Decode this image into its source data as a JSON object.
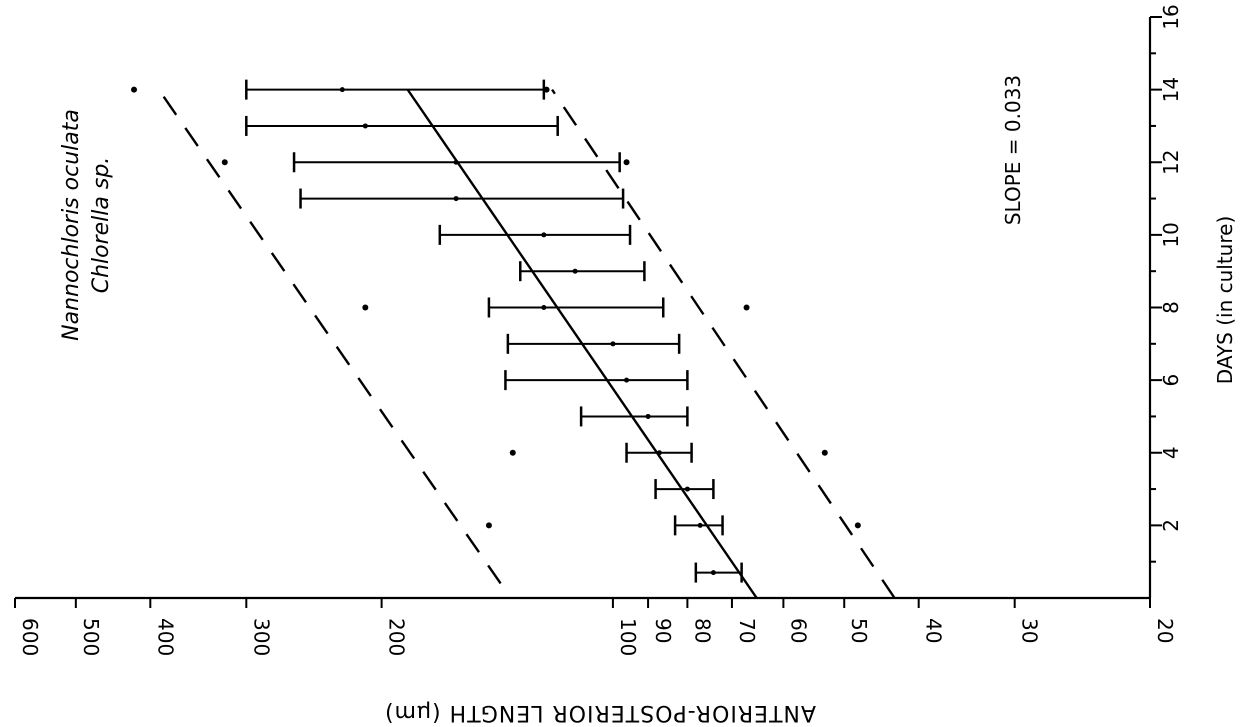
{
  "chart_data": {
    "type": "scatter",
    "orientation": "rotated-90",
    "title": "",
    "xlabel": "DAYS (in culture)",
    "ylabel": "ANTERIOR-POSTERIOR LENGTH (µm)",
    "x_ticks": [
      2,
      4,
      6,
      8,
      10,
      12,
      14,
      16
    ],
    "y_ticks": [
      20,
      30,
      40,
      50,
      60,
      70,
      80,
      90,
      100,
      200,
      300,
      400,
      500,
      600
    ],
    "xlim": [
      0,
      16
    ],
    "ylim": [
      20,
      600
    ],
    "y_scale": "log",
    "legend": [
      "Nannochloris oculata",
      "Chlorella sp."
    ],
    "annotations": [
      "SLOPE = 0.033"
    ],
    "series": [
      {
        "name": "",
        "style": "mean with range bars",
        "points": [
          {
            "x": 0.7,
            "mean": 74,
            "low": 68,
            "high": 78
          },
          {
            "x": 2,
            "mean": 77,
            "low": 72,
            "high": 83
          },
          {
            "x": 3,
            "mean": 80,
            "low": 74,
            "high": 88
          },
          {
            "x": 4,
            "mean": 87,
            "low": 79,
            "high": 96
          },
          {
            "x": 5,
            "mean": 90,
            "low": 80,
            "high": 110
          },
          {
            "x": 6,
            "mean": 96,
            "low": 80,
            "high": 138
          },
          {
            "x": 7,
            "mean": 100,
            "low": 82,
            "high": 137
          },
          {
            "x": 8,
            "mean": 123,
            "low": 86,
            "high": 145
          },
          {
            "x": 9,
            "mean": 112,
            "low": 91,
            "high": 132
          },
          {
            "x": 10,
            "mean": 123,
            "low": 95,
            "high": 168
          },
          {
            "x": 11,
            "mean": 160,
            "low": 97,
            "high": 255
          },
          {
            "x": 12,
            "mean": 160,
            "low": 98,
            "high": 260
          },
          {
            "x": 13,
            "mean": 210,
            "low": 118,
            "high": 300
          },
          {
            "x": 14,
            "mean": 225,
            "low": 123,
            "high": 300
          }
        ]
      },
      {
        "name": "",
        "style": "points",
        "points": [
          {
            "x": 2,
            "y": 145
          },
          {
            "x": 2,
            "y": 48
          },
          {
            "x": 4,
            "y": 135
          },
          {
            "x": 4,
            "y": 53
          },
          {
            "x": 8,
            "y": 210
          },
          {
            "x": 8,
            "y": 67
          },
          {
            "x": 12,
            "y": 320
          },
          {
            "x": 12,
            "y": 96
          },
          {
            "x": 14,
            "y": 420
          },
          {
            "x": 14,
            "y": 122
          }
        ]
      }
    ],
    "lines": [
      {
        "style": "solid",
        "from": [
          0,
          65
        ],
        "to": [
          14,
          185
        ]
      },
      {
        "style": "dashed",
        "from": [
          0.4,
          140
        ],
        "to": [
          14,
          390
        ]
      },
      {
        "style": "dashed",
        "from": [
          0,
          43
        ],
        "to": [
          14,
          120
        ]
      }
    ]
  }
}
